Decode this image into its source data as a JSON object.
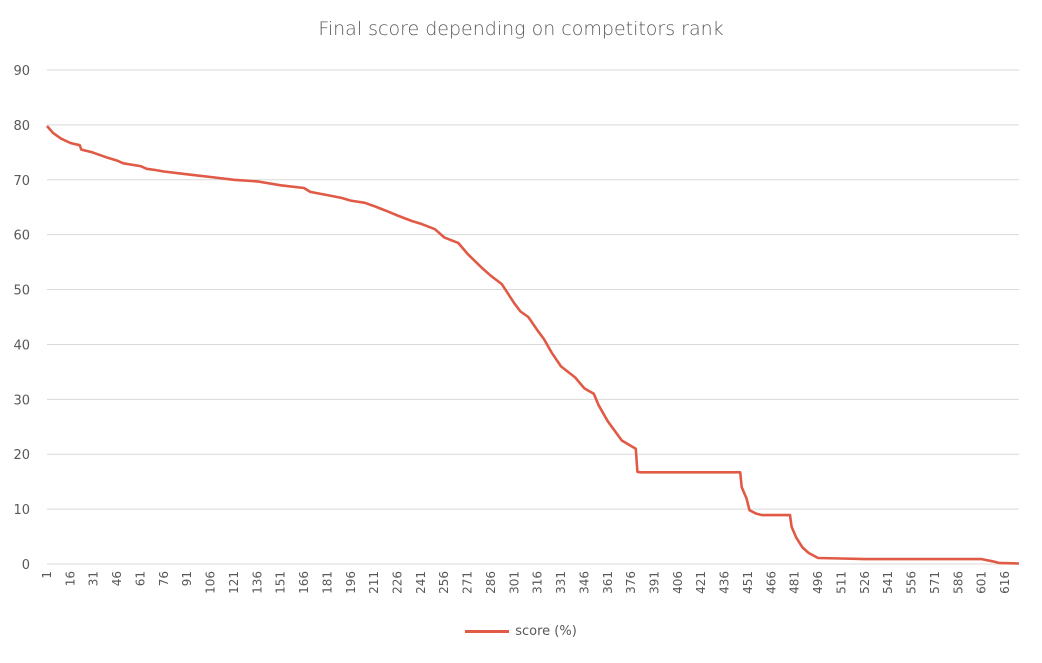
{
  "chart_data": {
    "type": "line",
    "title": "Final score depending on competitors rank",
    "xlabel": "",
    "ylabel": "",
    "ylim": [
      0,
      90
    ],
    "y_ticks": [
      0,
      10,
      20,
      30,
      40,
      50,
      60,
      70,
      80,
      90
    ],
    "xlim": [
      1,
      625
    ],
    "x_ticks": [
      1,
      16,
      31,
      46,
      61,
      76,
      91,
      106,
      121,
      136,
      151,
      166,
      181,
      196,
      211,
      226,
      241,
      256,
      271,
      286,
      301,
      316,
      331,
      346,
      361,
      376,
      391,
      406,
      421,
      436,
      451,
      466,
      481,
      496,
      511,
      526,
      541,
      556,
      571,
      586,
      601,
      616
    ],
    "grid": true,
    "legend_position": "bottom",
    "series": [
      {
        "name": "score (%)",
        "color": "#e05a46",
        "x": [
          1,
          5,
          10,
          16,
          22,
          23,
          30,
          40,
          46,
          50,
          61,
          65,
          70,
          76,
          91,
          100,
          106,
          121,
          136,
          151,
          166,
          170,
          181,
          190,
          196,
          205,
          211,
          220,
          226,
          235,
          241,
          250,
          256,
          265,
          271,
          280,
          286,
          293,
          301,
          305,
          310,
          316,
          320,
          325,
          331,
          340,
          346,
          352,
          355,
          361,
          370,
          376,
          379,
          380,
          382,
          390,
          440,
          446,
          447,
          450,
          452,
          456,
          460,
          470,
          478,
          479,
          482,
          486,
          490,
          496,
          511,
          526,
          541,
          556,
          571,
          586,
          601,
          608,
          612,
          625
        ],
        "y": [
          79.8,
          78.5,
          77.5,
          76.7,
          76.3,
          75.5,
          75.0,
          74.0,
          73.5,
          73.0,
          72.5,
          72.0,
          71.8,
          71.5,
          71.0,
          70.7,
          70.5,
          70.0,
          69.7,
          69.0,
          68.5,
          67.8,
          67.2,
          66.7,
          66.2,
          65.8,
          65.2,
          64.2,
          63.5,
          62.5,
          62.0,
          61.0,
          59.5,
          58.5,
          56.5,
          54.0,
          52.5,
          51.0,
          47.5,
          46.0,
          45.0,
          42.5,
          41.0,
          38.5,
          36.0,
          34.0,
          32.0,
          31.0,
          29.0,
          26.0,
          22.5,
          21.5,
          21.0,
          16.8,
          16.7,
          16.7,
          16.7,
          16.7,
          14.0,
          12.0,
          9.8,
          9.2,
          8.9,
          8.9,
          8.9,
          6.8,
          4.8,
          3.0,
          2.0,
          1.1,
          1.0,
          0.9,
          0.9,
          0.9,
          0.9,
          0.9,
          0.9,
          0.5,
          0.2,
          0.1
        ]
      }
    ]
  }
}
